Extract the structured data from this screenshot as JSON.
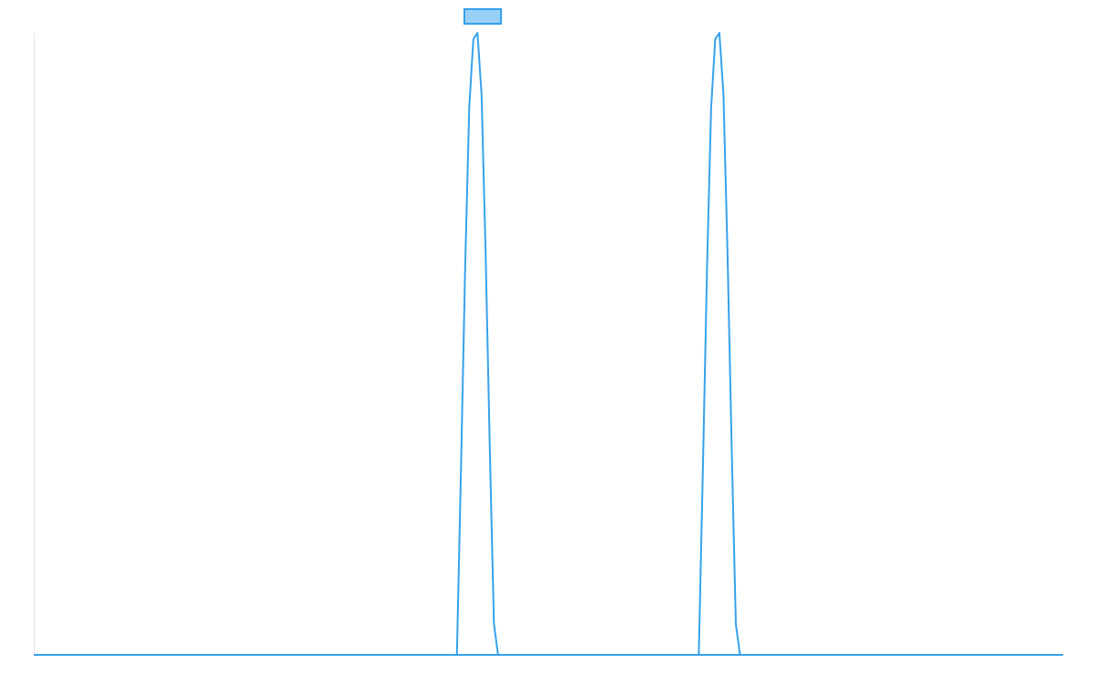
{
  "chart_data": {
    "type": "line",
    "title": "",
    "xlabel": "",
    "ylabel": "",
    "legend": {
      "position": "top-center",
      "show_label_text": false
    },
    "grid": false,
    "xlim": [
      0,
      100
    ],
    "ylim": [
      0,
      1
    ],
    "series": [
      {
        "name": "",
        "color": "#36a2eb",
        "fill_color": "#9ad0f5",
        "x": [
          0,
          41.1,
          41.5,
          41.9,
          42.3,
          42.7,
          43.1,
          43.5,
          43.9,
          44.3,
          44.7,
          45.1,
          100
        ],
        "values": [
          0,
          0,
          0.3,
          0.62,
          0.88,
          0.99,
          1.0,
          0.9,
          0.64,
          0.33,
          0.05,
          0,
          0
        ]
      },
      {
        "name": "",
        "color": "#36a2eb",
        "fill_color": "#9ad0f5",
        "x": [
          0,
          64.6,
          65.0,
          65.4,
          65.8,
          66.2,
          66.6,
          67.0,
          67.4,
          67.8,
          68.2,
          68.6,
          100
        ],
        "values": [
          0,
          0,
          0.3,
          0.62,
          0.88,
          0.99,
          1.0,
          0.9,
          0.64,
          0.33,
          0.05,
          0,
          0
        ]
      }
    ]
  }
}
